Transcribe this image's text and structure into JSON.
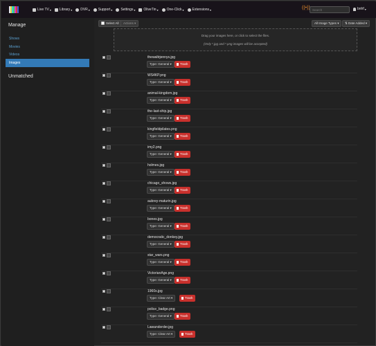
{
  "nav": {
    "items": [
      {
        "label": "Live TV",
        "icon": "tv-icon"
      },
      {
        "label": "Library",
        "icon": "library-icon"
      },
      {
        "label": "DVR",
        "icon": "dvr-icon"
      },
      {
        "label": "Support",
        "icon": "support-icon"
      },
      {
        "label": "Settings",
        "icon": "settings-icon"
      },
      {
        "label": "OliveTin",
        "icon": "olivetin-icon"
      },
      {
        "label": "One-Click",
        "icon": "one-click-icon"
      },
      {
        "label": "Extensions",
        "icon": "extensions-icon"
      }
    ],
    "search_placeholder": "Search",
    "user": "bnhf",
    "accent": "#f0902c"
  },
  "sidebar": {
    "title": "Manage",
    "items": [
      {
        "label": "Shows"
      },
      {
        "label": "Movies"
      },
      {
        "label": "Videos"
      },
      {
        "label": "Images"
      }
    ],
    "active_index": 3,
    "title2": "Unmatched"
  },
  "toolbar": {
    "select_all": "Select All",
    "actions": "Actions",
    "image_type_filter": "All Image Types",
    "sort": "Date Added"
  },
  "dropzone": {
    "line1": "Drag your images here, or click to select the files.",
    "line2": "(Only *.jpg and *.png images will be accepted)"
  },
  "images": [
    {
      "name": "thewaltrjennys.jpg",
      "type": "Type: General"
    },
    {
      "name": "WS4KP.png",
      "type": "Type: General"
    },
    {
      "name": "animal-kingdom.jpg",
      "type": "Type: General"
    },
    {
      "name": "the-last-ship.jpg",
      "type": "Type: General"
    },
    {
      "name": "kingfieldpilates.png",
      "type": "Type: General"
    },
    {
      "name": "imy2.png",
      "type": "Type: General"
    },
    {
      "name": "holmes.jpg",
      "type": "Type: General"
    },
    {
      "name": "chicago_shows.jpg",
      "type": "Type: General"
    },
    {
      "name": "aubrey-maturin.jpg",
      "type": "Type: General"
    },
    {
      "name": "bones.jpg",
      "type": "Type: General"
    },
    {
      "name": "democratic_donkey.jpg",
      "type": "Type: General"
    },
    {
      "name": "star_wars.png",
      "type": "Type: General"
    },
    {
      "name": "VictorianAge.png",
      "type": "Type: General"
    },
    {
      "name": "1960s.jpg",
      "type": "Type: Clear Art"
    },
    {
      "name": "police_badge.png",
      "type": "Type: General"
    },
    {
      "name": "Lawandorder.jpg",
      "type": "Type: Clear Art"
    }
  ],
  "trash_label": "Trash",
  "colors": {
    "trash": "#c9302c",
    "active": "#337ab7",
    "link": "#5ba0d0"
  }
}
